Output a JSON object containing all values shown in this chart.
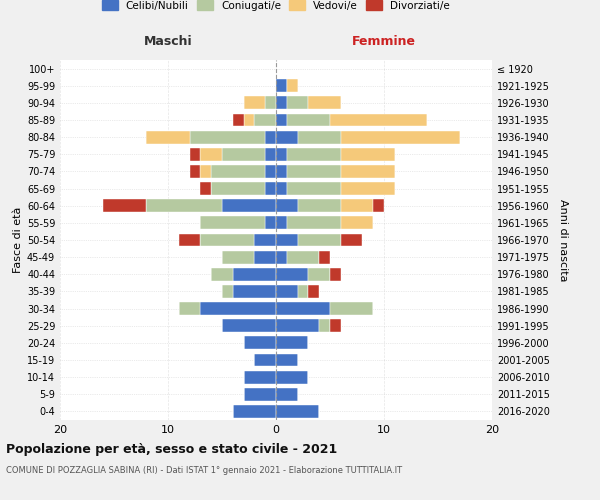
{
  "age_groups": [
    "0-4",
    "5-9",
    "10-14",
    "15-19",
    "20-24",
    "25-29",
    "30-34",
    "35-39",
    "40-44",
    "45-49",
    "50-54",
    "55-59",
    "60-64",
    "65-69",
    "70-74",
    "75-79",
    "80-84",
    "85-89",
    "90-94",
    "95-99",
    "100+"
  ],
  "birth_years": [
    "2016-2020",
    "2011-2015",
    "2006-2010",
    "2001-2005",
    "1996-2000",
    "1991-1995",
    "1986-1990",
    "1981-1985",
    "1976-1980",
    "1971-1975",
    "1966-1970",
    "1961-1965",
    "1956-1960",
    "1951-1955",
    "1946-1950",
    "1941-1945",
    "1936-1940",
    "1931-1935",
    "1926-1930",
    "1921-1925",
    "≤ 1920"
  ],
  "colors": {
    "celibi": "#4472c4",
    "coniugati": "#b5c9a0",
    "vedovi": "#f5c97a",
    "divorziati": "#c0392b"
  },
  "maschi": {
    "celibi": [
      4,
      3,
      3,
      2,
      3,
      5,
      7,
      4,
      4,
      2,
      2,
      1,
      5,
      1,
      1,
      1,
      1,
      0,
      0,
      0,
      0
    ],
    "coniugati": [
      0,
      0,
      0,
      0,
      0,
      0,
      2,
      1,
      2,
      3,
      5,
      6,
      7,
      5,
      5,
      4,
      7,
      2,
      1,
      0,
      0
    ],
    "vedovi": [
      0,
      0,
      0,
      0,
      0,
      0,
      0,
      0,
      0,
      0,
      0,
      0,
      0,
      0,
      1,
      2,
      4,
      1,
      2,
      0,
      0
    ],
    "divorziati": [
      0,
      0,
      0,
      0,
      0,
      0,
      0,
      0,
      0,
      0,
      2,
      0,
      4,
      1,
      1,
      1,
      0,
      1,
      0,
      0,
      0
    ]
  },
  "femmine": {
    "celibi": [
      4,
      2,
      3,
      2,
      3,
      4,
      5,
      2,
      3,
      1,
      2,
      1,
      2,
      1,
      1,
      1,
      2,
      1,
      1,
      1,
      0
    ],
    "coniugati": [
      0,
      0,
      0,
      0,
      0,
      1,
      4,
      1,
      2,
      3,
      4,
      5,
      4,
      5,
      5,
      5,
      4,
      4,
      2,
      0,
      0
    ],
    "vedovi": [
      0,
      0,
      0,
      0,
      0,
      0,
      0,
      0,
      0,
      0,
      0,
      3,
      3,
      5,
      5,
      5,
      11,
      9,
      3,
      1,
      0
    ],
    "divorziati": [
      0,
      0,
      0,
      0,
      0,
      1,
      0,
      1,
      1,
      1,
      2,
      0,
      1,
      0,
      0,
      0,
      0,
      0,
      0,
      0,
      0
    ]
  },
  "xlim": 20,
  "title": "Popolazione per età, sesso e stato civile - 2021",
  "subtitle": "COMUNE DI POZZAGLIA SABINA (RI) - Dati ISTAT 1° gennaio 2021 - Elaborazione TUTTITALIA.IT",
  "ylabel_left": "Fasce di età",
  "ylabel_right": "Anni di nascita",
  "xlabel_left": "Maschi",
  "xlabel_right": "Femmine",
  "legend_labels": [
    "Celibi/Nubili",
    "Coniugati/e",
    "Vedovi/e",
    "Divorziati/e"
  ],
  "bg_color": "#f0f0f0",
  "plot_bg_color": "#ffffff",
  "grid_color": "#cccccc"
}
